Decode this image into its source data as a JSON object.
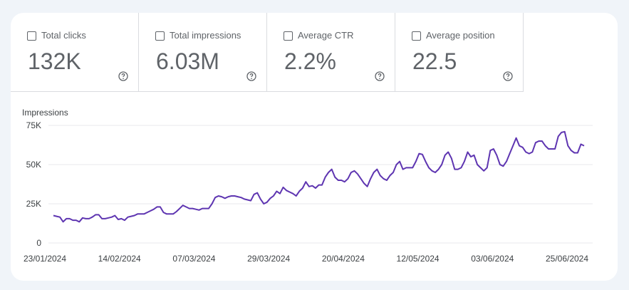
{
  "metrics": [
    {
      "label": "Total clicks",
      "value": "132K"
    },
    {
      "label": "Total impressions",
      "value": "6.03M"
    },
    {
      "label": "Average CTR",
      "value": "2.2%"
    },
    {
      "label": "Average position",
      "value": "22.5"
    }
  ],
  "colors": {
    "line": "#5e35b1",
    "text": "#5f6368",
    "grid": "#e8eaed",
    "background": "#f0f4f9"
  },
  "icons": {
    "help": "help-circle-icon",
    "checkbox": "checkbox-empty-icon"
  },
  "chart_data": {
    "type": "line",
    "ylabel": "Impressions",
    "ylim": [
      0,
      75000
    ],
    "y_ticks": [
      "0",
      "25K",
      "50K",
      "75K"
    ],
    "x_ticks": [
      "23/01/2024",
      "14/02/2024",
      "07/03/2024",
      "29/03/2024",
      "20/04/2024",
      "12/05/2024",
      "03/06/2024",
      "25/06/2024"
    ],
    "grid": true,
    "x_start": "23/01/2024",
    "x_end": "29/06/2024",
    "series": [
      {
        "name": "Impressions",
        "values": [
          17500,
          17000,
          16500,
          13500,
          15500,
          15500,
          14500,
          14500,
          13500,
          16000,
          15500,
          15500,
          16500,
          18000,
          18000,
          15500,
          15500,
          16000,
          16500,
          17500,
          15000,
          15500,
          14500,
          16500,
          17000,
          17500,
          18500,
          18500,
          18500,
          19500,
          20500,
          21500,
          23000,
          23000,
          19500,
          18500,
          18500,
          18500,
          20000,
          22000,
          24000,
          23000,
          22000,
          22000,
          21500,
          21000,
          22000,
          22000,
          22000,
          25000,
          29000,
          30000,
          29500,
          28500,
          29500,
          30000,
          30000,
          29500,
          29000,
          28000,
          27500,
          27000,
          31000,
          32000,
          28000,
          25000,
          26000,
          28500,
          30000,
          33000,
          31500,
          35500,
          33500,
          32500,
          31500,
          30000,
          33000,
          35000,
          39000,
          36000,
          36500,
          35000,
          37000,
          37000,
          42000,
          45000,
          47000,
          42000,
          40000,
          40000,
          39000,
          41000,
          45000,
          46000,
          44000,
          41000,
          38000,
          36000,
          41000,
          45000,
          47000,
          43000,
          41000,
          40000,
          43000,
          45000,
          50000,
          52000,
          47000,
          48000,
          48000,
          48000,
          52000,
          57000,
          56500,
          52000,
          48000,
          46000,
          45000,
          47000,
          50000,
          56000,
          58000,
          54000,
          47000,
          47000,
          48000,
          52000,
          58000,
          55000,
          56000,
          50000,
          48000,
          46000,
          48000,
          59000,
          60000,
          56000,
          50000,
          49000,
          52000,
          57000,
          62000,
          67000,
          62000,
          61000,
          58000,
          57000,
          58000,
          64000,
          65000,
          65000,
          62000,
          60000,
          60000,
          60000,
          68000,
          70500,
          71000,
          62000,
          59000,
          57500,
          57500,
          63000,
          62000
        ]
      }
    ]
  }
}
